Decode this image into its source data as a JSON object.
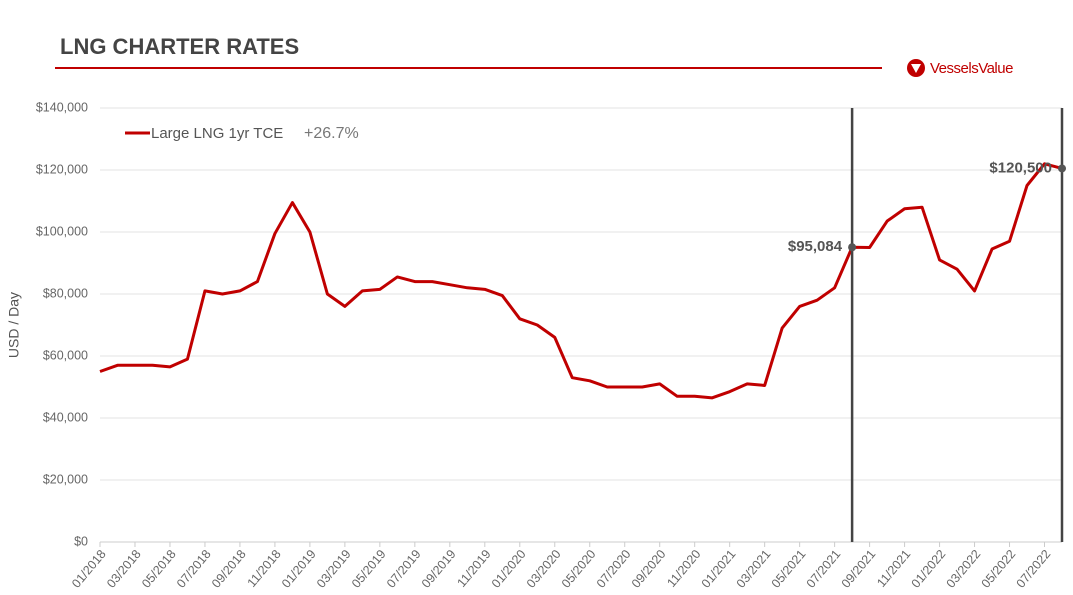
{
  "chart_data": {
    "type": "line",
    "title": "LNG CHARTER RATES",
    "brand": "VesselsValue",
    "y_label": "USD / Day",
    "legend_change": "+26.7%",
    "x": [
      "01/2018",
      "02/2018",
      "03/2018",
      "04/2018",
      "05/2018",
      "06/2018",
      "07/2018",
      "08/2018",
      "09/2018",
      "10/2018",
      "11/2018",
      "12/2018",
      "01/2019",
      "02/2019",
      "03/2019",
      "04/2019",
      "05/2019",
      "06/2019",
      "07/2019",
      "08/2019",
      "09/2019",
      "10/2019",
      "11/2019",
      "12/2019",
      "01/2020",
      "02/2020",
      "03/2020",
      "04/2020",
      "05/2020",
      "06/2020",
      "07/2020",
      "08/2020",
      "09/2020",
      "10/2020",
      "11/2020",
      "12/2020",
      "01/2021",
      "02/2021",
      "03/2021",
      "04/2021",
      "05/2021",
      "06/2021",
      "07/2021",
      "08/2021",
      "09/2021",
      "10/2021",
      "11/2021",
      "12/2021",
      "01/2022",
      "02/2022",
      "03/2022",
      "04/2022",
      "05/2022",
      "06/2022",
      "07/2022",
      "08/2022"
    ],
    "series": [
      {
        "name": "Large LNG 1yr TCE",
        "color": "#c00000",
        "values": [
          55000,
          57000,
          57000,
          57000,
          56500,
          59000,
          81000,
          80000,
          81000,
          84000,
          99500,
          109500,
          100000,
          80000,
          76000,
          81000,
          81500,
          85500,
          84000,
          84000,
          83000,
          82000,
          81500,
          79500,
          72000,
          70000,
          66000,
          53000,
          52000,
          50000,
          50000,
          50000,
          51000,
          47000,
          47000,
          46500,
          48500,
          51000,
          50500,
          69000,
          76000,
          78000,
          82000,
          95084,
          95000,
          103500,
          107500,
          108000,
          91000,
          88000,
          81000,
          94500,
          97000,
          115000,
          122000,
          120500
        ]
      }
    ],
    "annotations": [
      {
        "x": "08/2021",
        "value": 95084,
        "label": "$95,084"
      },
      {
        "x": "08/2022",
        "value": 120500,
        "label": "$120,500"
      }
    ],
    "ylim": [
      0,
      140000
    ],
    "yticks": [
      {
        "value": 0,
        "label": "$0"
      },
      {
        "value": 20000,
        "label": "$20,000"
      },
      {
        "value": 40000,
        "label": "$40,000"
      },
      {
        "value": 60000,
        "label": "$60,000"
      },
      {
        "value": 80000,
        "label": "$80,000"
      },
      {
        "value": 100000,
        "label": "$100,000"
      },
      {
        "value": 120000,
        "label": "$120,000"
      },
      {
        "value": 140000,
        "label": "$140,000"
      }
    ],
    "xticks": [
      "01/2018",
      "03/2018",
      "05/2018",
      "07/2018",
      "09/2018",
      "11/2018",
      "01/2019",
      "03/2019",
      "05/2019",
      "07/2019",
      "09/2019",
      "11/2019",
      "01/2020",
      "03/2020",
      "05/2020",
      "07/2020",
      "09/2020",
      "11/2020",
      "01/2021",
      "03/2021",
      "05/2021",
      "07/2021",
      "09/2021",
      "11/2021",
      "01/2022",
      "03/2022",
      "05/2022",
      "07/2022"
    ],
    "grid": true
  }
}
